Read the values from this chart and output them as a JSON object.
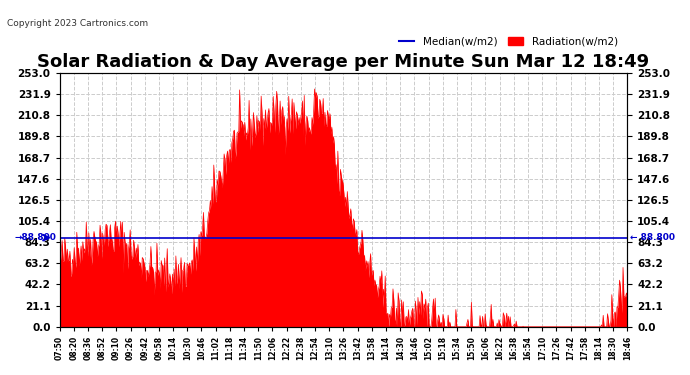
{
  "title": "Solar Radiation & Day Average per Minute Sun Mar 12 18:49",
  "copyright": "Copyright 2023 Cartronics.com",
  "ylabel_right": "",
  "yticks": [
    0.0,
    21.1,
    42.2,
    63.2,
    84.3,
    105.4,
    126.5,
    147.6,
    168.7,
    189.8,
    210.8,
    231.9,
    253.0
  ],
  "ymin": 0.0,
  "ymax": 253.0,
  "median_value": 88.8,
  "median_label": "88.800",
  "median_color": "#0000cc",
  "radiation_color": "#ff0000",
  "background_color": "#ffffff",
  "grid_color": "#cccccc",
  "title_fontsize": 13,
  "legend_median": "Median(w/m2)",
  "legend_radiation": "Radiation(w/m2)",
  "xtick_labels": [
    "07:50",
    "08:20",
    "08:36",
    "08:52",
    "09:10",
    "09:26",
    "09:42",
    "09:58",
    "10:14",
    "10:30",
    "10:46",
    "11:02",
    "11:18",
    "11:34",
    "11:50",
    "12:06",
    "12:22",
    "12:38",
    "12:54",
    "13:10",
    "13:26",
    "13:42",
    "13:58",
    "14:14",
    "14:30",
    "14:46",
    "15:02",
    "15:18",
    "15:34",
    "15:50",
    "16:06",
    "16:22",
    "16:38",
    "16:54",
    "17:10",
    "17:26",
    "17:42",
    "17:58",
    "18:14",
    "18:30",
    "18:46"
  ]
}
